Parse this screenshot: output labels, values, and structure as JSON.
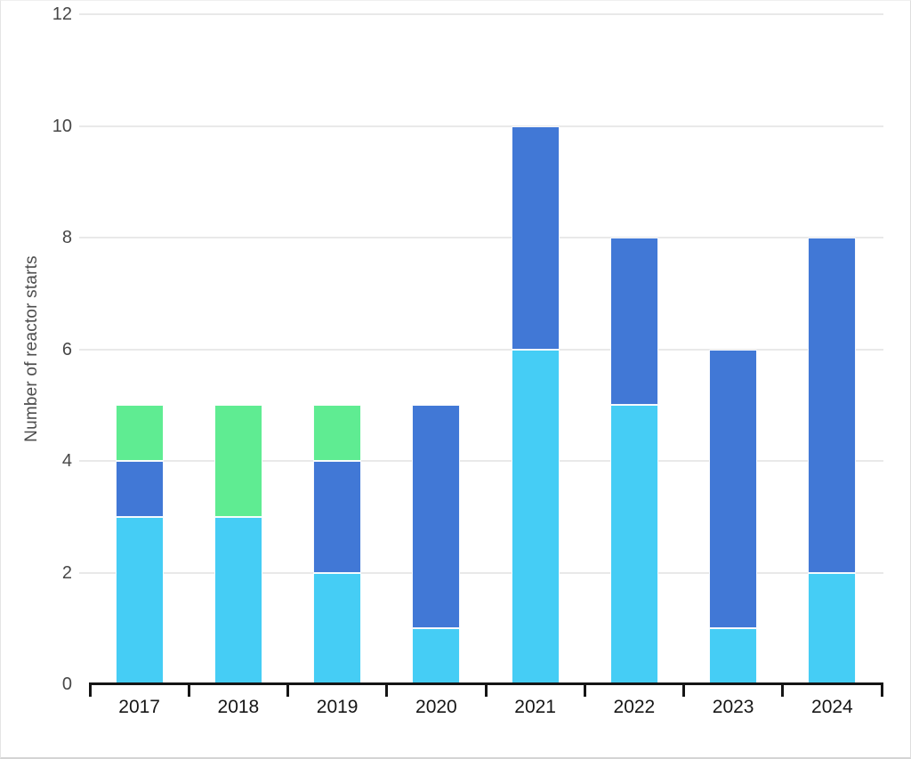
{
  "chart_data": {
    "type": "bar",
    "stacked": true,
    "title": "",
    "xlabel": "",
    "ylabel": "Number of reactor starts",
    "categories": [
      "2017",
      "2018",
      "2019",
      "2020",
      "2021",
      "2022",
      "2023",
      "2024"
    ],
    "series": [
      {
        "name": "light-blue-segment",
        "color": "#45CDF5",
        "values": [
          3,
          3,
          2,
          1,
          6,
          5,
          1,
          2
        ]
      },
      {
        "name": "blue-segment",
        "color": "#4178D6",
        "values": [
          1,
          0,
          2,
          4,
          4,
          3,
          5,
          6
        ]
      },
      {
        "name": "green-segment",
        "color": "#5FEC92",
        "values": [
          1,
          2,
          1,
          0,
          0,
          0,
          0,
          0
        ]
      }
    ],
    "totals": [
      5,
      5,
      5,
      5,
      10,
      8,
      6,
      8
    ],
    "ylim": [
      0,
      12
    ],
    "yticks": [
      0,
      2,
      4,
      6,
      8,
      10,
      12
    ],
    "grid": "horizontal",
    "legend": "none"
  },
  "style": {
    "gridline_color": "#e9e9e9",
    "axis_color": "#151515",
    "y_tick_color": "#474747",
    "x_tick_color": "#161616",
    "ylabel_color": "#4d4d4d",
    "background": "#ffffff"
  }
}
